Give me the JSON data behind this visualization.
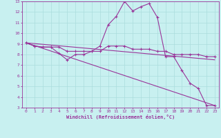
{
  "xlabel": "Windchill (Refroidissement éolien,°C)",
  "xlim": [
    -0.5,
    23.5
  ],
  "ylim": [
    3,
    13
  ],
  "xticks": [
    0,
    1,
    2,
    3,
    4,
    5,
    6,
    7,
    8,
    9,
    10,
    11,
    12,
    13,
    14,
    15,
    16,
    17,
    18,
    19,
    20,
    21,
    22,
    23
  ],
  "yticks": [
    3,
    4,
    5,
    6,
    7,
    8,
    9,
    10,
    11,
    12,
    13
  ],
  "bg_color": "#c8f0f0",
  "line_color": "#993399",
  "grid_color": "#aadddd",
  "lines": [
    {
      "x": [
        0,
        1,
        2,
        3,
        4,
        5,
        6,
        7,
        8,
        9,
        10,
        11,
        12,
        13,
        14,
        15,
        16,
        17,
        18,
        19,
        20,
        21,
        22,
        23
      ],
      "y": [
        9.1,
        8.8,
        8.7,
        8.7,
        8.1,
        7.5,
        8.0,
        8.0,
        8.3,
        8.8,
        10.8,
        11.6,
        13.0,
        12.1,
        12.5,
        12.8,
        11.5,
        7.8,
        7.8,
        6.5,
        5.3,
        4.8,
        3.2,
        3.2
      ],
      "markers": true
    },
    {
      "x": [
        0,
        1,
        2,
        3,
        4,
        5,
        6,
        7,
        8,
        9,
        10,
        11,
        12,
        13,
        14,
        15,
        16,
        17,
        18,
        19,
        20,
        21,
        22,
        23
      ],
      "y": [
        9.1,
        8.8,
        8.7,
        8.7,
        8.7,
        8.3,
        8.3,
        8.3,
        8.3,
        8.3,
        8.8,
        8.8,
        8.8,
        8.5,
        8.5,
        8.5,
        8.3,
        8.3,
        8.0,
        8.0,
        8.0,
        8.0,
        7.8,
        7.8
      ],
      "markers": true
    },
    {
      "x": [
        0,
        23
      ],
      "y": [
        9.1,
        7.5
      ],
      "markers": false
    },
    {
      "x": [
        0,
        23
      ],
      "y": [
        9.1,
        3.2
      ],
      "markers": false
    }
  ]
}
